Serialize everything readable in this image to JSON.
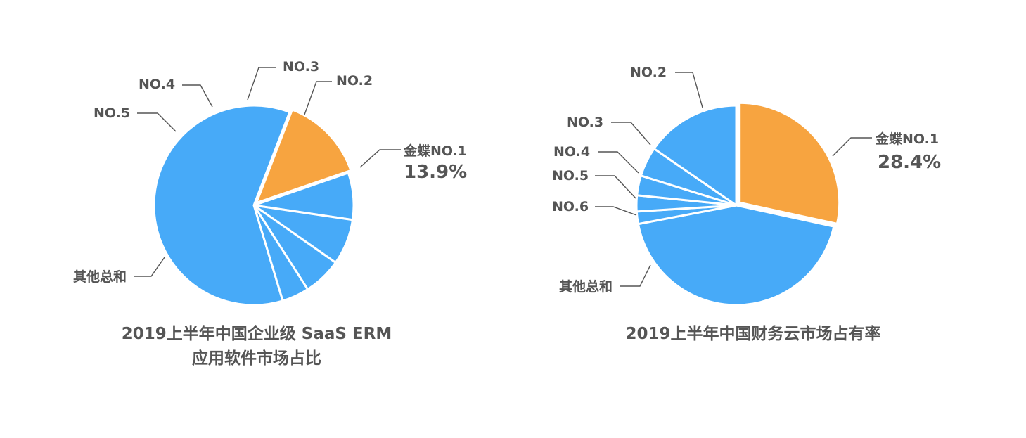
{
  "colors": {
    "highlight": "#F7A440",
    "base": "#47AAF8",
    "text": "#555555"
  },
  "chart_data": [
    {
      "type": "pie",
      "title": [
        "2019上半年中国企业级 SaaS ERM",
        "应用软件市场占比"
      ],
      "slices": [
        {
          "label": "金蝶NO.1",
          "value": 13.9,
          "value_label": "13.9%",
          "color": "#F7A440"
        },
        {
          "label": "NO.2",
          "value": 7.6,
          "color": "#47AAF8"
        },
        {
          "label": "NO.3",
          "value": 7.4,
          "color": "#47AAF8"
        },
        {
          "label": "NO.4",
          "value": 6.2,
          "color": "#47AAF8"
        },
        {
          "label": "NO.5",
          "value": 4.4,
          "color": "#47AAF8"
        },
        {
          "label": "其他总和",
          "value": 60.5,
          "color": "#47AAF8"
        }
      ]
    },
    {
      "type": "pie",
      "title": [
        "2019上半年中国财务云市场占有率"
      ],
      "slices": [
        {
          "label": "金蝶NO.1",
          "value": 28.4,
          "value_label": "28.4%",
          "color": "#F7A440"
        },
        {
          "label": "其他总和",
          "value": 43.6,
          "color": "#47AAF8"
        },
        {
          "label": "NO.6",
          "value": 2.0,
          "color": "#47AAF8"
        },
        {
          "label": "NO.5",
          "value": 2.6,
          "color": "#47AAF8"
        },
        {
          "label": "NO.4",
          "value": 3.2,
          "color": "#47AAF8"
        },
        {
          "label": "NO.3",
          "value": 4.8,
          "color": "#47AAF8"
        },
        {
          "label": "NO.2",
          "value": 15.4,
          "color": "#47AAF8"
        }
      ]
    }
  ]
}
